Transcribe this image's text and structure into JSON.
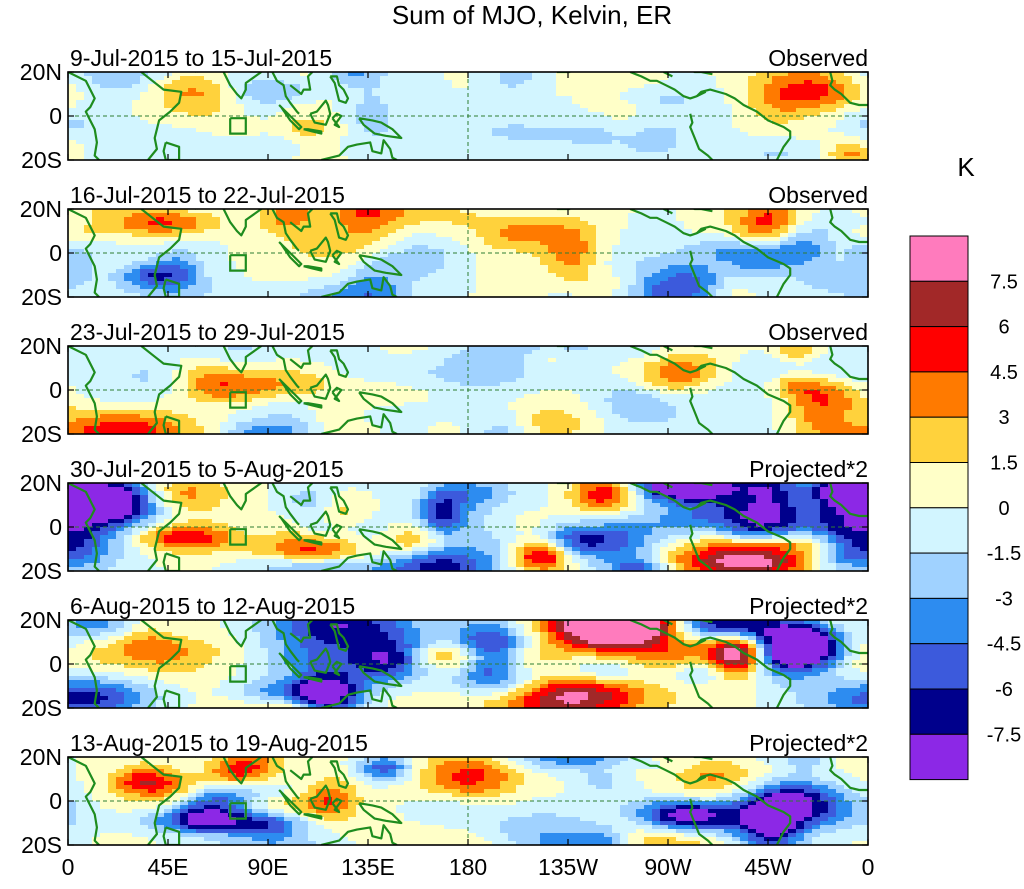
{
  "chart_data": {
    "type": "heatmap",
    "title": "Sum of MJO, Kelvin, ER",
    "colorbar": {
      "unit_label": "K",
      "levels": [
        "7.5",
        "6",
        "4.5",
        "3",
        "1.5",
        "0",
        "-1.5",
        "-3",
        "-4.5",
        "-6",
        "-7.5"
      ],
      "colors": [
        "#ff7bbd",
        "#a22828",
        "#ff0000",
        "#ff7a00",
        "#ffd23c",
        "#ffffc8",
        "#d2f5ff",
        "#a0d2ff",
        "#2d8cf0",
        "#3c5adc",
        "#00008c",
        "#8c28e6"
      ]
    },
    "x_ticks": [
      "0",
      "45E",
      "90E",
      "135E",
      "180",
      "135W",
      "90W",
      "45W",
      "0"
    ],
    "y_ticks": [
      "20N",
      "0",
      "20S"
    ],
    "xlim": [
      0,
      360
    ],
    "ylim": [
      -20,
      20
    ],
    "panels": [
      {
        "date_range": "9-Jul-2015 to 15-Jul-2015",
        "kind": "Observed",
        "amp": 0.35,
        "seed": 1
      },
      {
        "date_range": "16-Jul-2015 to 22-Jul-2015",
        "kind": "Observed",
        "amp": 0.5,
        "seed": 2
      },
      {
        "date_range": "23-Jul-2015 to 29-Jul-2015",
        "kind": "Observed",
        "amp": 0.45,
        "seed": 3
      },
      {
        "date_range": "30-Jul-2015 to 5-Aug-2015",
        "kind": "Projected*2",
        "amp": 0.85,
        "seed": 4
      },
      {
        "date_range": "6-Aug-2015 to 12-Aug-2015",
        "kind": "Projected*2",
        "amp": 1.0,
        "seed": 5
      },
      {
        "date_range": "13-Aug-2015 to 19-Aug-2015",
        "kind": "Projected*2",
        "amp": 0.65,
        "seed": 6
      }
    ]
  }
}
